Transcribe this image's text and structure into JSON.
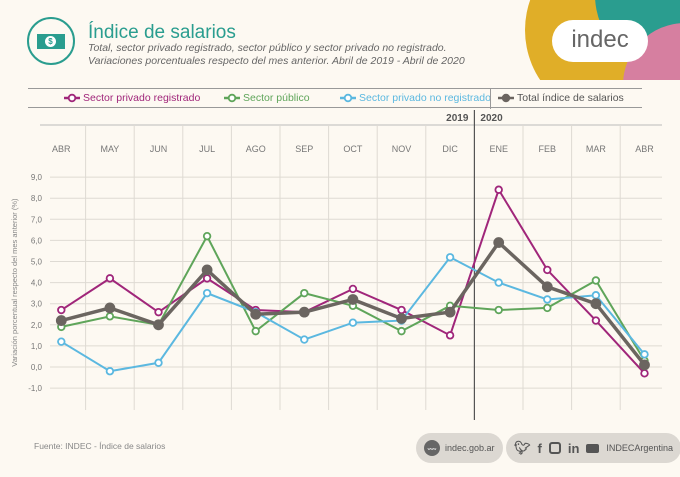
{
  "header": {
    "title": "Índice de salarios",
    "subtitle1": "Total, sector privado registrado, sector público y sector privado no registrado.",
    "subtitle2": "Variaciones porcentuales respecto del mes anterior. Abril de 2019 - Abril de 2020",
    "logo": "indec",
    "icon_symbol": "$"
  },
  "footer": {
    "source": "Fuente: INDEC - Índice de salarios",
    "web_icon": "www",
    "web": "indec.gob.ar",
    "social": "INDECArgentina"
  },
  "chart_data": {
    "type": "line",
    "ylabel": "Variación porcentual respecto del mes anterior (%)",
    "ylim": [
      -1,
      9
    ],
    "yticks": [
      "9,0",
      "8,0",
      "7,0",
      "6,0",
      "5,0",
      "4,0",
      "3,0",
      "2,0",
      "1,0",
      "0,0",
      "-1,0"
    ],
    "ytick_values": [
      9,
      8,
      7,
      6,
      5,
      4,
      3,
      2,
      1,
      0,
      -1
    ],
    "years": [
      "2019",
      "2020"
    ],
    "categories": [
      "ABR",
      "MAY",
      "JUN",
      "JUL",
      "AGO",
      "SEP",
      "OCT",
      "NOV",
      "DIC",
      "ENE",
      "FEB",
      "MAR",
      "ABR"
    ],
    "legend_position": "top",
    "grid": true,
    "series": [
      {
        "name": "Sector privado registrado",
        "color": "#a0267a",
        "values": [
          2.7,
          4.2,
          2.6,
          4.2,
          2.7,
          2.6,
          3.7,
          2.7,
          1.5,
          8.4,
          4.6,
          2.2,
          -0.3
        ]
      },
      {
        "name": "Sector público",
        "color": "#5fa55a",
        "values": [
          1.9,
          2.4,
          2.0,
          6.2,
          1.7,
          3.5,
          2.9,
          1.7,
          2.9,
          2.7,
          2.8,
          4.1,
          0.3
        ]
      },
      {
        "name": "Sector privado no registrado",
        "color": "#5bb8e0",
        "values": [
          1.2,
          -0.2,
          0.2,
          3.5,
          2.6,
          1.3,
          2.1,
          2.2,
          5.2,
          4.0,
          3.2,
          3.4,
          0.6
        ]
      },
      {
        "name": "Total índice de salarios",
        "color": "#6b6560",
        "values": [
          2.2,
          2.8,
          2.0,
          4.6,
          2.5,
          2.6,
          3.2,
          2.3,
          2.6,
          5.9,
          3.8,
          3.0,
          0.1
        ]
      }
    ]
  }
}
